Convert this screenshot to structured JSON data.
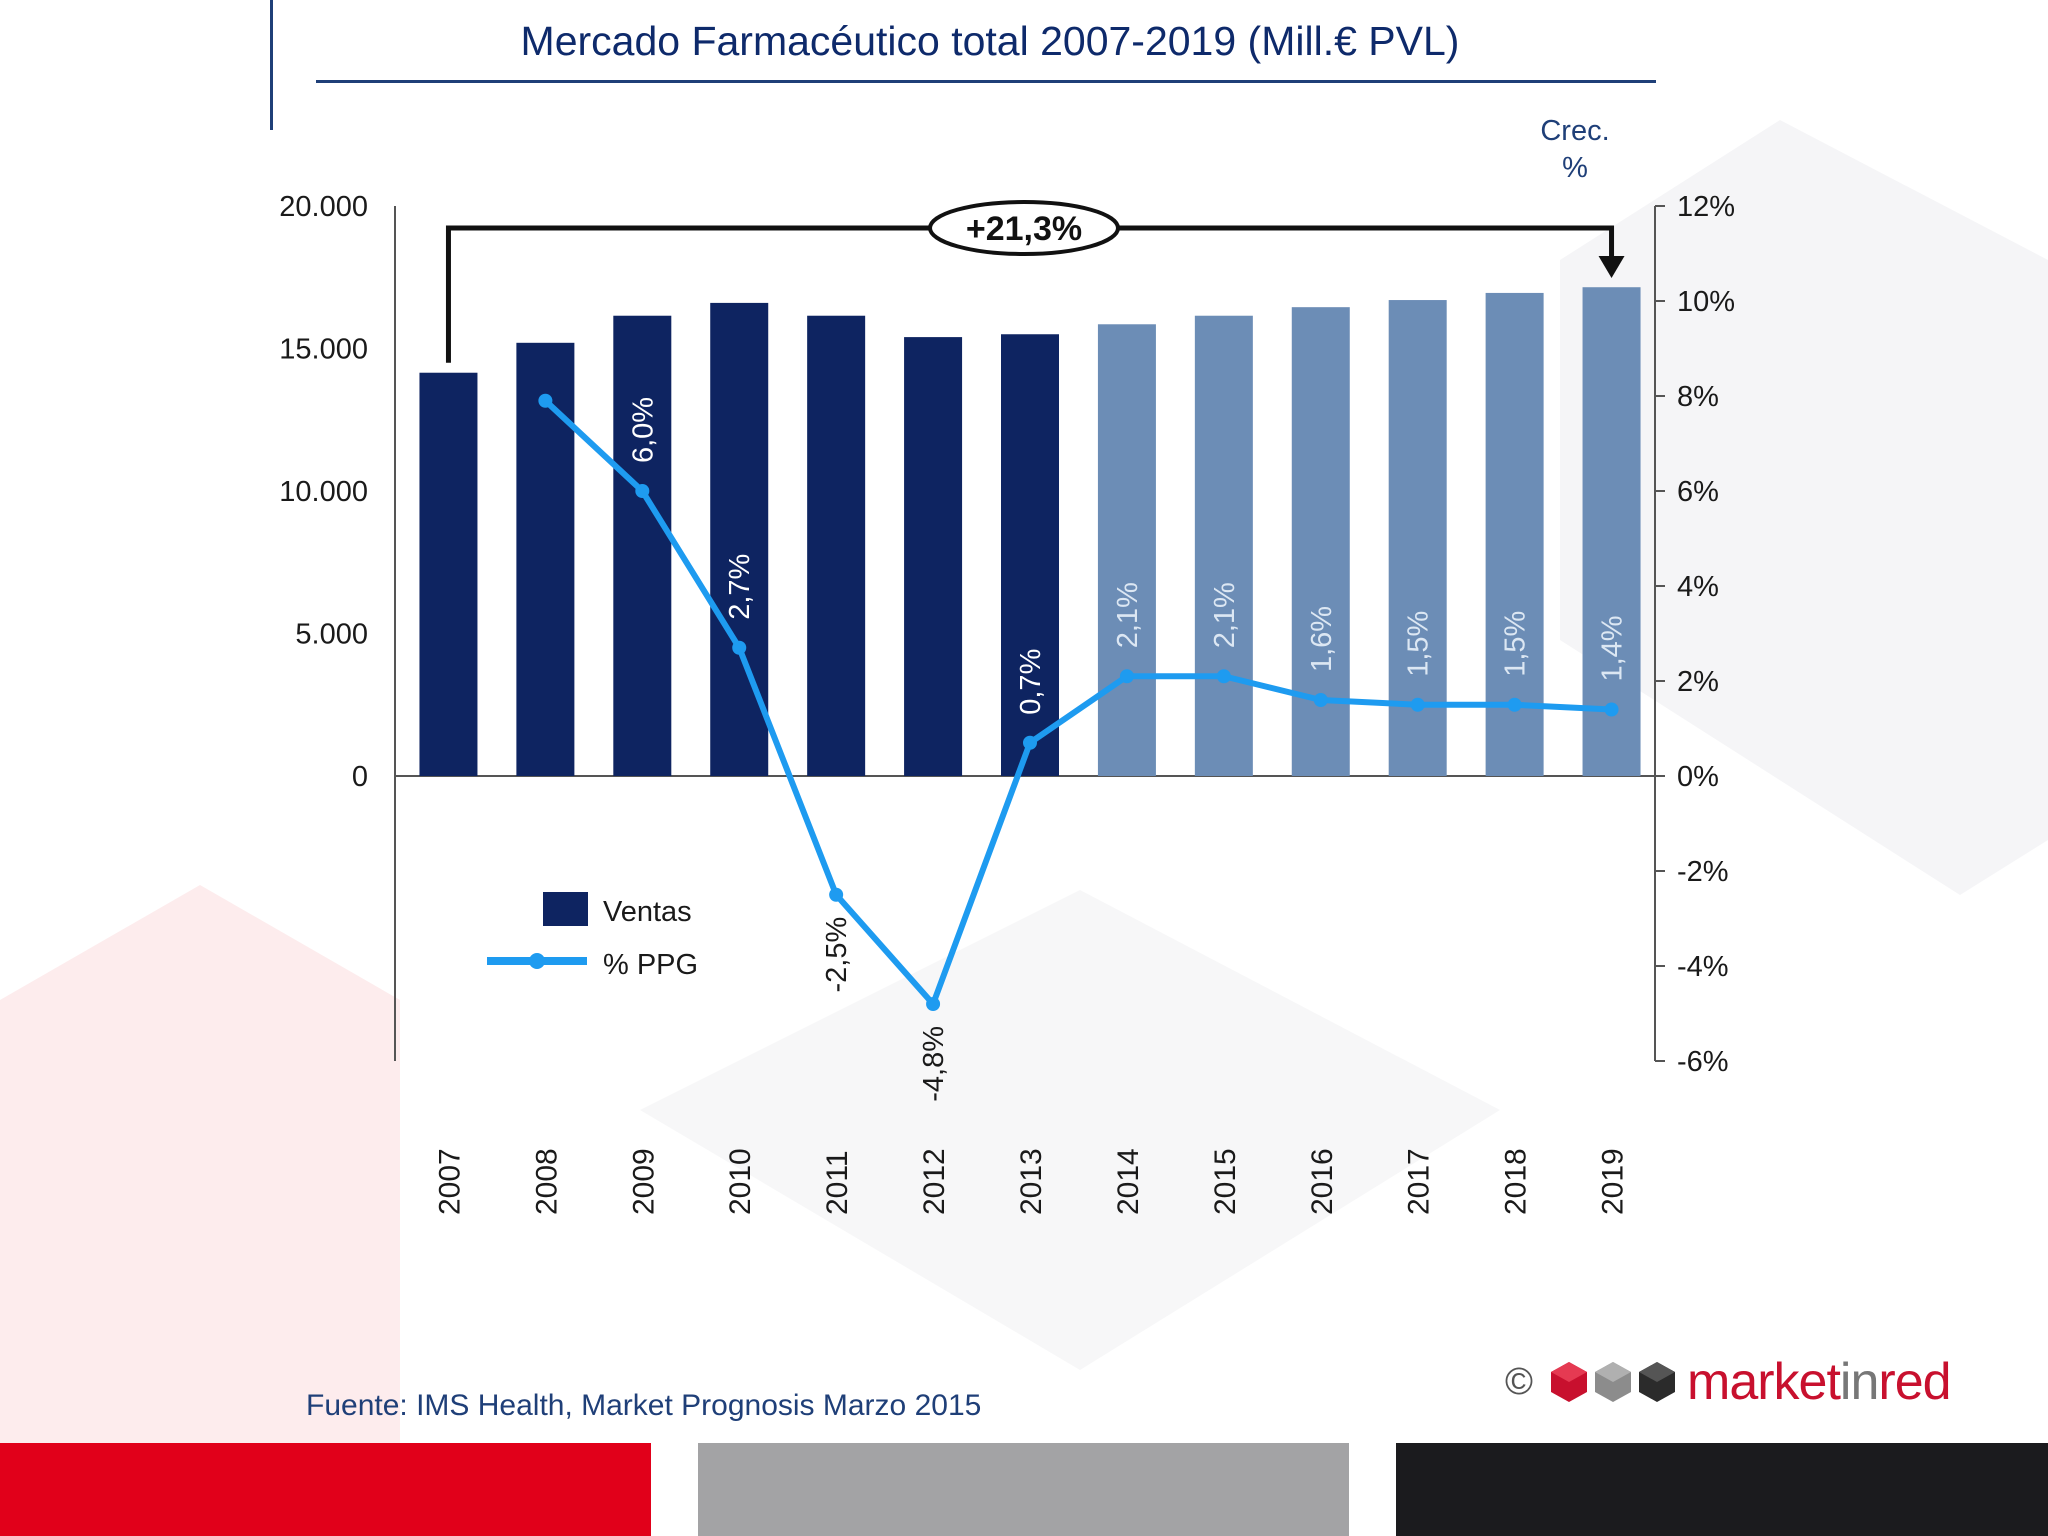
{
  "chart_data": {
    "type": "bar",
    "title": "Mercado Farmacéutico total 2007-2019 (Mill.€ PVL)",
    "categories": [
      "2007",
      "2008",
      "2009",
      "2010",
      "2011",
      "2012",
      "2013",
      "2014",
      "2015",
      "2016",
      "2017",
      "2018",
      "2019"
    ],
    "series": [
      {
        "name": "Ventas",
        "type": "bar",
        "axis": "left",
        "values": [
          14150,
          15200,
          16150,
          16600,
          16150,
          15400,
          15500,
          15850,
          16150,
          16450,
          16700,
          16950,
          17150
        ],
        "color_actual": "#0e2461",
        "color_forecast": "#6c8db6",
        "forecast_from": "2014"
      },
      {
        "name": "% PPG",
        "type": "line",
        "axis": "right",
        "values": [
          null,
          7.9,
          6.0,
          2.7,
          -2.5,
          -4.8,
          0.7,
          2.1,
          2.1,
          1.6,
          1.5,
          1.5,
          1.4
        ],
        "labels": [
          "",
          "",
          "6,0%",
          "2,7%",
          "-2,5%",
          "-4,8%",
          "0,7%",
          "2,1%",
          "2,1%",
          "1,6%",
          "1,5%",
          "1,5%",
          "1,4%"
        ],
        "color": "#1e9bf0"
      }
    ],
    "y_left": {
      "min": -10000,
      "max": 20000,
      "ticks": [
        0,
        5000,
        10000,
        15000,
        20000
      ],
      "tick_labels": [
        "0",
        "5.000",
        "10.000",
        "15.000",
        "20.000"
      ]
    },
    "y_right": {
      "min": -6,
      "max": 12,
      "ticks": [
        -6,
        -4,
        -2,
        0,
        2,
        4,
        6,
        8,
        10,
        12
      ],
      "tick_labels": [
        "-6%",
        "-4%",
        "-2%",
        "0%",
        "2%",
        "4%",
        "6%",
        "8%",
        "10%",
        "12%"
      ],
      "title": "Crec. %"
    },
    "annotation": {
      "text": "+21,3%",
      "from": "2007",
      "to": "2019"
    },
    "legend": {
      "position": "bottom-left",
      "items": [
        "Ventas",
        "% PPG"
      ]
    }
  },
  "source": "Fuente: IMS Health, Market Prognosis Marzo 2015",
  "brand": {
    "copyright": "©",
    "name_a": "market",
    "name_b": "in",
    "name_c": "red"
  }
}
